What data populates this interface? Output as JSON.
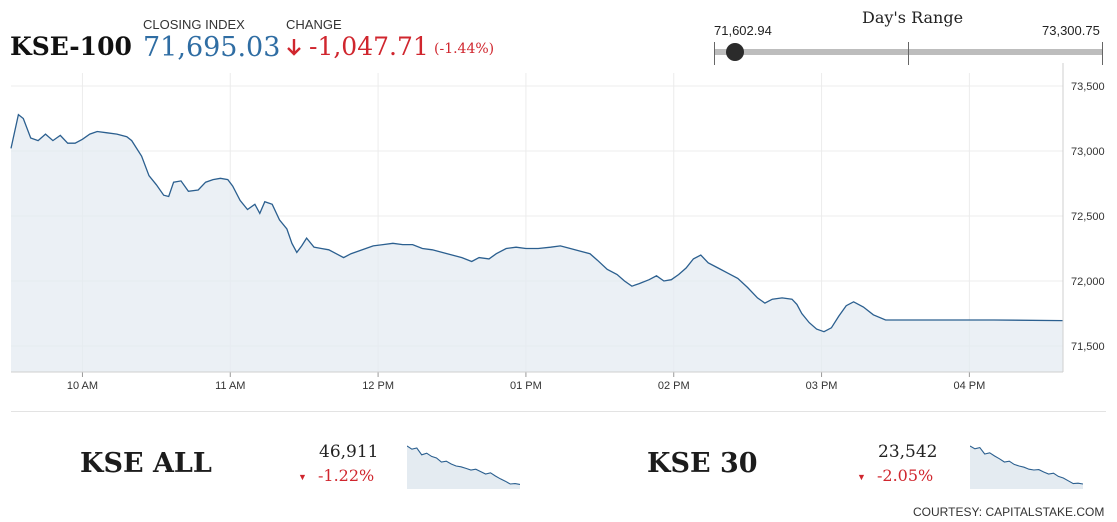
{
  "header": {
    "ticker": "KSE-100",
    "closing_label": "CLOSING INDEX",
    "closing_value": "71,695.03",
    "change_label": "CHANGE",
    "change_value": "-1,047.71",
    "change_pct": "(-1.44%)",
    "down_color": "#d0262e",
    "value_color": "#2f6da3"
  },
  "day_range": {
    "title": "Day's Range",
    "low": "71,602.94",
    "high": "73,300.75",
    "current_fraction": 0.054
  },
  "chart_data": {
    "type": "area",
    "x_unit": "time of day",
    "x_ticks": [
      "10 AM",
      "11 AM",
      "12 PM",
      "01 PM",
      "02 PM",
      "03 PM",
      "04 PM"
    ],
    "y_ticks": [
      "73,500",
      "73,000",
      "72,500",
      "72,000",
      "71,500"
    ],
    "ylim": [
      71300,
      73600
    ],
    "xlim": [
      "09:31",
      "16:38"
    ],
    "line_color": "#2b5f8f",
    "fill_color": "#e4ebf1",
    "points": [
      [
        "09:31",
        73020
      ],
      [
        "09:34",
        73280
      ],
      [
        "09:36",
        73250
      ],
      [
        "09:39",
        73100
      ],
      [
        "09:42",
        73080
      ],
      [
        "09:45",
        73130
      ],
      [
        "09:48",
        73080
      ],
      [
        "09:51",
        73120
      ],
      [
        "09:54",
        73060
      ],
      [
        "09:57",
        73060
      ],
      [
        "10:00",
        73090
      ],
      [
        "10:03",
        73130
      ],
      [
        "10:06",
        73150
      ],
      [
        "10:10",
        73140
      ],
      [
        "10:14",
        73130
      ],
      [
        "10:18",
        73110
      ],
      [
        "10:20",
        73080
      ],
      [
        "10:24",
        72960
      ],
      [
        "10:27",
        72810
      ],
      [
        "10:30",
        72740
      ],
      [
        "10:33",
        72660
      ],
      [
        "10:35",
        72650
      ],
      [
        "10:37",
        72760
      ],
      [
        "10:40",
        72770
      ],
      [
        "10:43",
        72690
      ],
      [
        "10:47",
        72700
      ],
      [
        "10:50",
        72760
      ],
      [
        "10:53",
        72780
      ],
      [
        "10:56",
        72790
      ],
      [
        "10:59",
        72780
      ],
      [
        "11:01",
        72730
      ],
      [
        "11:04",
        72620
      ],
      [
        "11:07",
        72550
      ],
      [
        "11:10",
        72590
      ],
      [
        "11:12",
        72520
      ],
      [
        "11:14",
        72610
      ],
      [
        "11:17",
        72590
      ],
      [
        "11:20",
        72470
      ],
      [
        "11:23",
        72400
      ],
      [
        "11:25",
        72290
      ],
      [
        "11:27",
        72220
      ],
      [
        "11:29",
        72270
      ],
      [
        "11:31",
        72330
      ],
      [
        "11:34",
        72260
      ],
      [
        "11:37",
        72250
      ],
      [
        "11:40",
        72240
      ],
      [
        "11:43",
        72210
      ],
      [
        "11:46",
        72180
      ],
      [
        "11:49",
        72210
      ],
      [
        "11:52",
        72230
      ],
      [
        "11:55",
        72250
      ],
      [
        "11:58",
        72270
      ],
      [
        "12:02",
        72280
      ],
      [
        "12:06",
        72290
      ],
      [
        "12:10",
        72280
      ],
      [
        "12:14",
        72280
      ],
      [
        "12:18",
        72250
      ],
      [
        "12:22",
        72240
      ],
      [
        "12:26",
        72220
      ],
      [
        "12:30",
        72200
      ],
      [
        "12:34",
        72180
      ],
      [
        "12:38",
        72150
      ],
      [
        "12:41",
        72180
      ],
      [
        "12:45",
        72170
      ],
      [
        "12:48",
        72210
      ],
      [
        "12:52",
        72250
      ],
      [
        "12:56",
        72260
      ],
      [
        "13:00",
        72250
      ],
      [
        "13:05",
        72250
      ],
      [
        "13:10",
        72260
      ],
      [
        "13:14",
        72270
      ],
      [
        "13:18",
        72250
      ],
      [
        "13:22",
        72230
      ],
      [
        "13:26",
        72210
      ],
      [
        "13:29",
        72160
      ],
      [
        "13:33",
        72090
      ],
      [
        "13:37",
        72050
      ],
      [
        "13:40",
        72000
      ],
      [
        "13:43",
        71960
      ],
      [
        "13:46",
        71980
      ],
      [
        "13:50",
        72010
      ],
      [
        "13:53",
        72040
      ],
      [
        "13:56",
        72000
      ],
      [
        "13:59",
        72010
      ],
      [
        "14:02",
        72050
      ],
      [
        "14:05",
        72100
      ],
      [
        "14:08",
        72170
      ],
      [
        "14:11",
        72200
      ],
      [
        "14:14",
        72140
      ],
      [
        "14:18",
        72100
      ],
      [
        "14:22",
        72060
      ],
      [
        "14:26",
        72020
      ],
      [
        "14:30",
        71950
      ],
      [
        "14:34",
        71870
      ],
      [
        "14:37",
        71830
      ],
      [
        "14:40",
        71860
      ],
      [
        "14:44",
        71870
      ],
      [
        "14:48",
        71860
      ],
      [
        "14:50",
        71820
      ],
      [
        "14:52",
        71750
      ],
      [
        "14:55",
        71680
      ],
      [
        "14:58",
        71630
      ],
      [
        "15:01",
        71610
      ],
      [
        "15:04",
        71640
      ],
      [
        "15:07",
        71730
      ],
      [
        "15:10",
        71810
      ],
      [
        "15:13",
        71840
      ],
      [
        "15:17",
        71800
      ],
      [
        "15:21",
        71740
      ],
      [
        "15:26",
        71700
      ],
      [
        "15:40",
        71700
      ],
      [
        "16:10",
        71700
      ],
      [
        "16:38",
        71695
      ]
    ]
  },
  "indices": [
    {
      "name": "KSE ALL",
      "value": "46,911",
      "change": "-1.22%",
      "spark": [
        1.0,
        0.92,
        0.95,
        0.78,
        0.82,
        0.74,
        0.7,
        0.6,
        0.62,
        0.55,
        0.5,
        0.48,
        0.44,
        0.4,
        0.42,
        0.36,
        0.3,
        0.33,
        0.25,
        0.18,
        0.12,
        0.05,
        0.06,
        0.04
      ]
    },
    {
      "name": "KSE 30",
      "value": "23,542",
      "change": "-2.05%",
      "spark": [
        1.0,
        0.93,
        0.96,
        0.8,
        0.83,
        0.75,
        0.68,
        0.6,
        0.62,
        0.54,
        0.5,
        0.47,
        0.42,
        0.4,
        0.41,
        0.35,
        0.3,
        0.32,
        0.24,
        0.2,
        0.13,
        0.06,
        0.07,
        0.05
      ]
    }
  ],
  "footer": {
    "courtesy": "COURTESY: CAPITALSTAKE.COM"
  }
}
